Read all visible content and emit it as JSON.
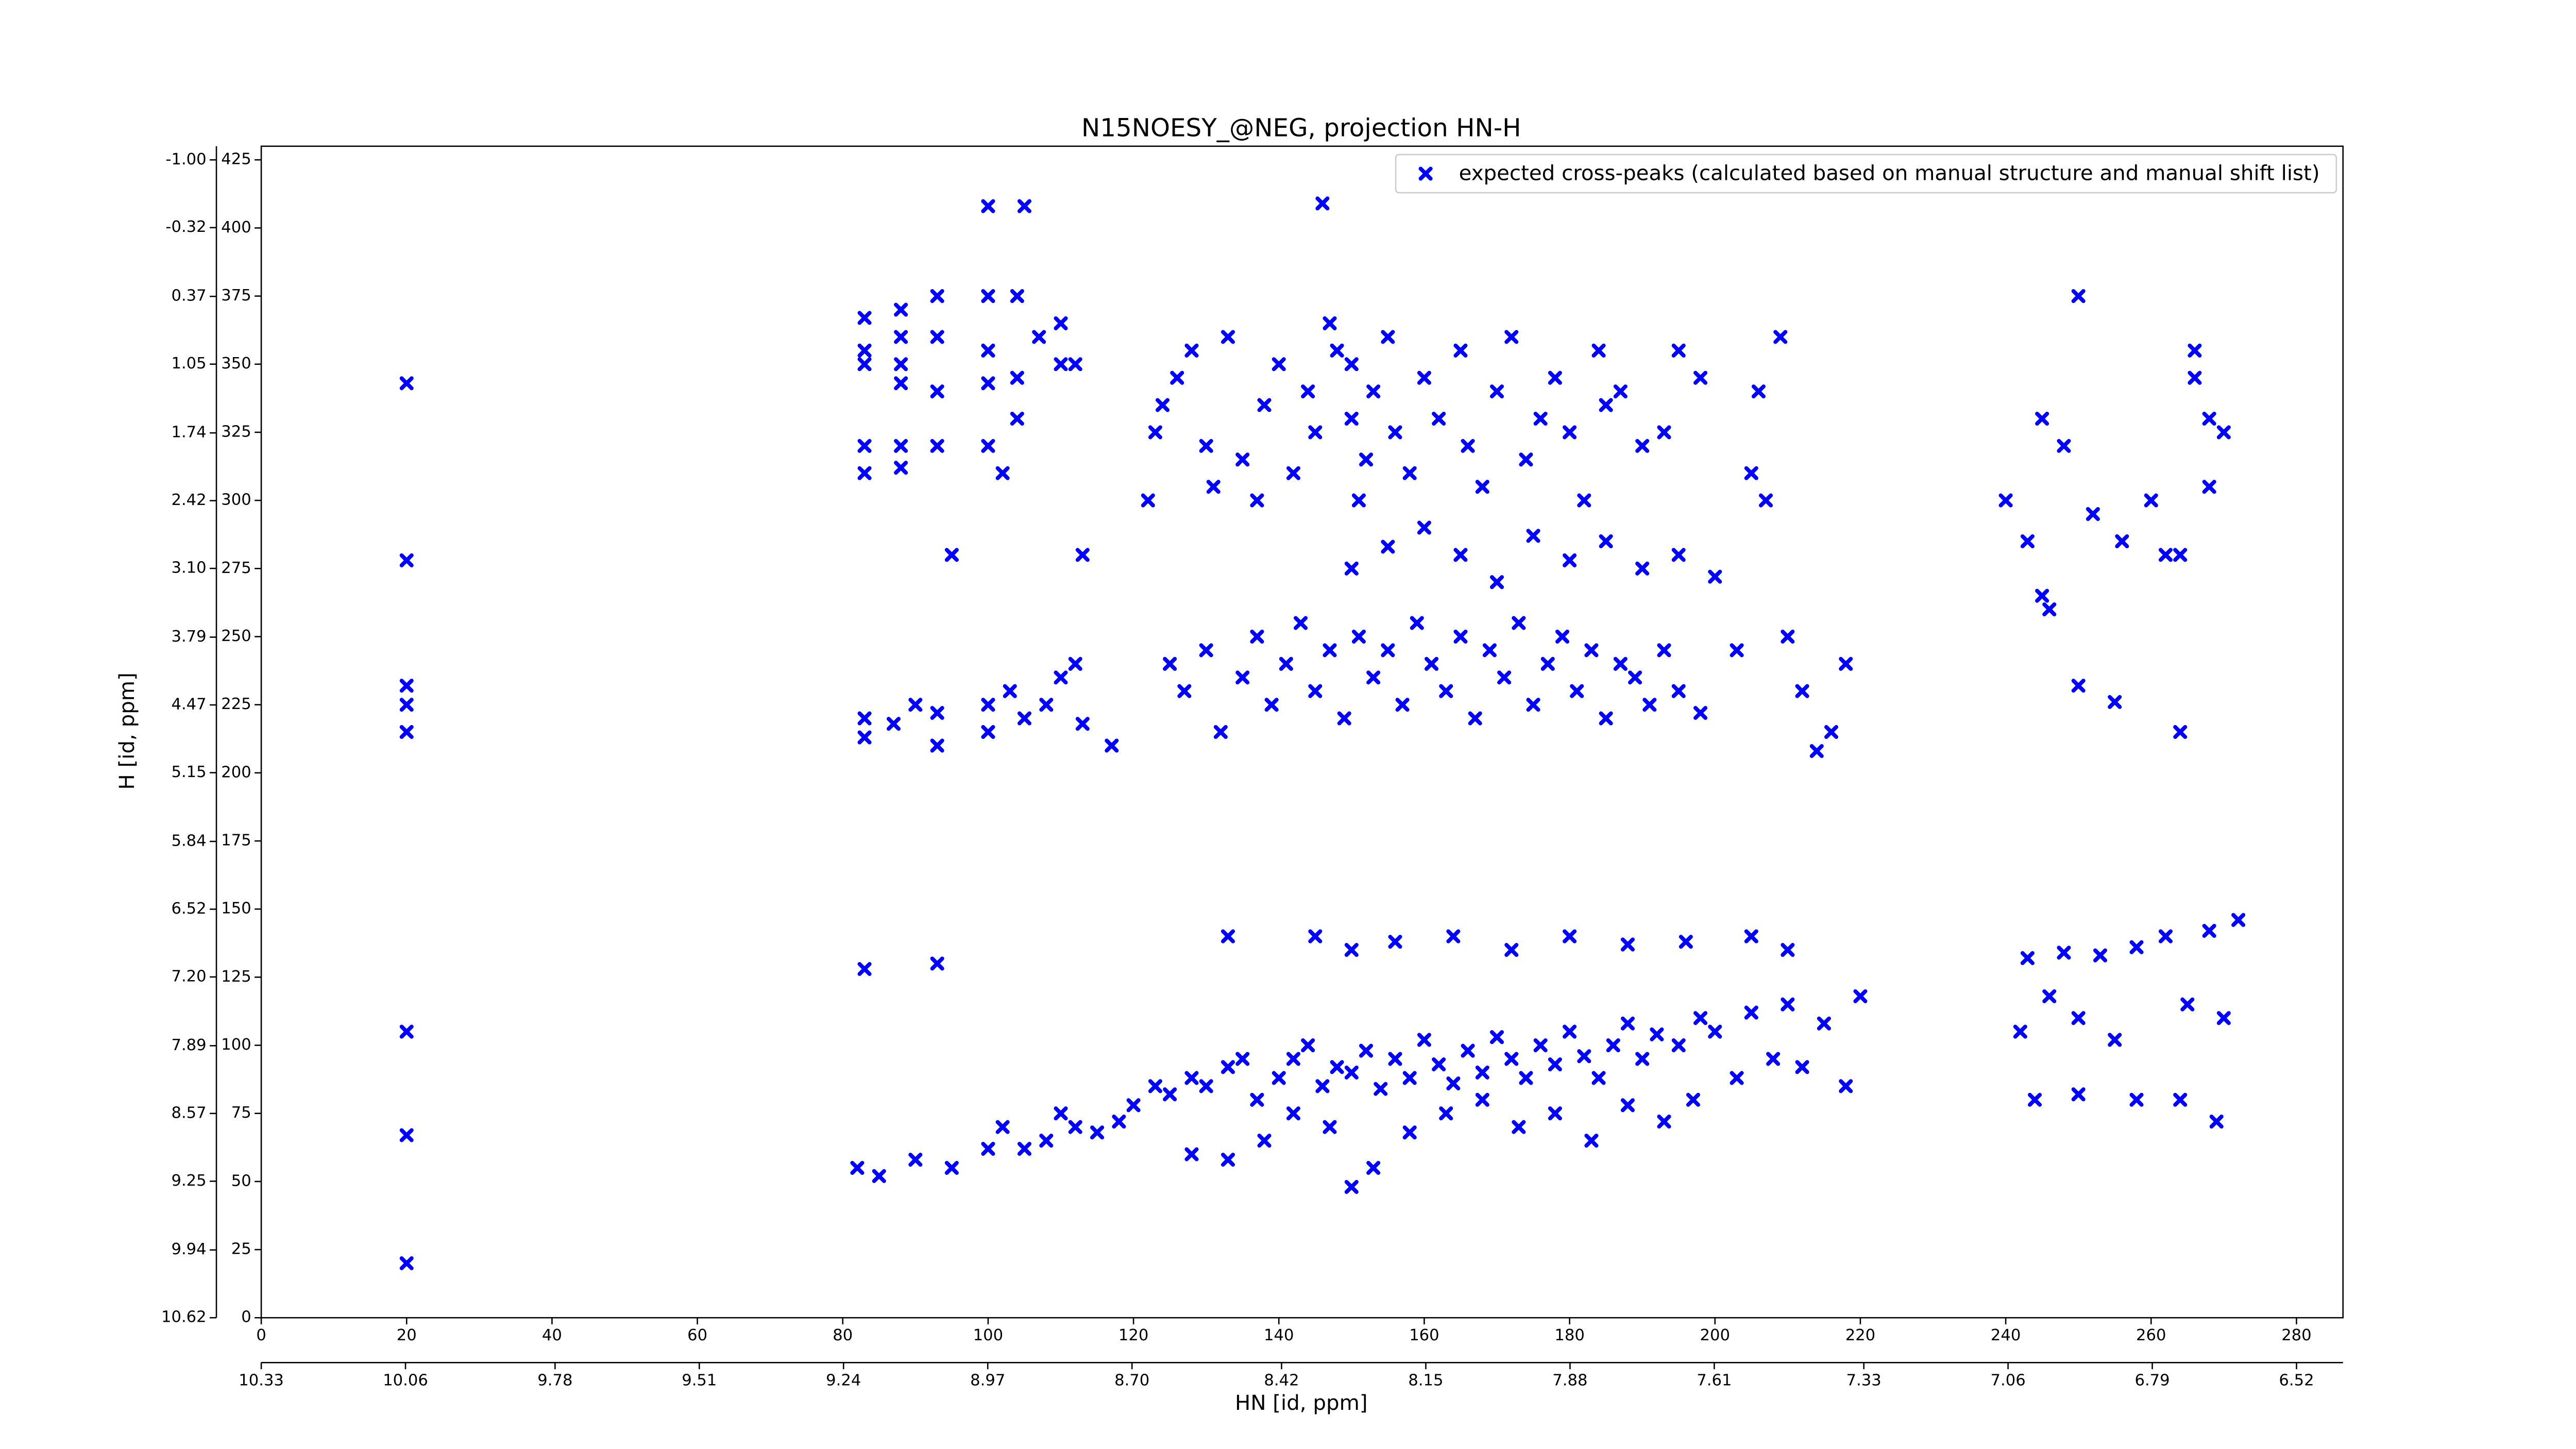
{
  "chart_data": {
    "type": "scatter",
    "title": "N15NOESY_@NEG, projection HN-H",
    "xlabel": "HN [id, ppm]",
    "ylabel": "H [id, ppm]",
    "xlim": [
      0,
      286.4
    ],
    "ylim": [
      0,
      430
    ],
    "xticks": [
      0,
      20,
      40,
      60,
      80,
      100,
      120,
      140,
      160,
      180,
      200,
      220,
      240,
      260,
      280
    ],
    "yticks": [
      0,
      25,
      50,
      75,
      100,
      125,
      150,
      175,
      200,
      225,
      250,
      275,
      300,
      325,
      350,
      375,
      400,
      425
    ],
    "x2lim": [
      10.33,
      6.433
    ],
    "x2ticks": [
      10.33,
      10.06,
      9.78,
      9.51,
      9.24,
      8.97,
      {
        "value": 8.7,
        "label": "8.70"
      },
      8.42,
      8.15,
      7.88,
      7.61,
      7.33,
      7.06,
      6.79,
      6.52
    ],
    "y2lim": [
      10.62,
      -1.137
    ],
    "y2ticks": [
      {
        "value": -1,
        "label": "-1.00"
      },
      -0.32,
      0.37,
      1.05,
      1.74,
      2.42,
      {
        "value": 3.1,
        "label": "3.10"
      },
      3.79,
      4.47,
      5.15,
      5.84,
      6.52,
      {
        "value": 7.2,
        "label": "7.20"
      },
      7.89,
      8.57,
      9.25,
      9.94,
      10.62
    ],
    "legend": "upper right",
    "grid": false,
    "series": [
      {
        "name": "expected cross-peaks (calculated based on manual structure and manual shift list)",
        "color": "#0000ff",
        "x": [
          20,
          20,
          20,
          20,
          20,
          20,
          20,
          20,
          100,
          105,
          146,
          83,
          83,
          83,
          83,
          83,
          88,
          88,
          88,
          88,
          88,
          88,
          93,
          93,
          93,
          93,
          95,
          100,
          100,
          100,
          100,
          102,
          104,
          104,
          104,
          107,
          110,
          110,
          112,
          113,
          83,
          83,
          87,
          90,
          93,
          93,
          100,
          100,
          103,
          105,
          108,
          110,
          112,
          113,
          117,
          122,
          123,
          124,
          126,
          128,
          130,
          131,
          133,
          135,
          137,
          138,
          140,
          142,
          144,
          145,
          147,
          148,
          150,
          150,
          151,
          152,
          153,
          155,
          156,
          158,
          160,
          162,
          165,
          166,
          168,
          170,
          172,
          174,
          176,
          178,
          180,
          182,
          184,
          185,
          187,
          190,
          193,
          195,
          198,
          206,
          209,
          205,
          207,
          125,
          127,
          130,
          132,
          135,
          137,
          139,
          141,
          143,
          145,
          147,
          149,
          151,
          153,
          155,
          157,
          159,
          161,
          163,
          165,
          167,
          169,
          171,
          173,
          175,
          177,
          179,
          181,
          183,
          185,
          187,
          189,
          191,
          193,
          195,
          198,
          203,
          210,
          212,
          214,
          216,
          218,
          150,
          155,
          160,
          165,
          170,
          175,
          180,
          185,
          190,
          195,
          200,
          82,
          85,
          90,
          95,
          100,
          102,
          105,
          108,
          110,
          112,
          115,
          118,
          120,
          123,
          125,
          128,
          130,
          133,
          135,
          137,
          140,
          142,
          144,
          146,
          148,
          150,
          152,
          154,
          156,
          158,
          160,
          162,
          164,
          166,
          168,
          170,
          172,
          174,
          176,
          178,
          180,
          182,
          184,
          186,
          188,
          190,
          192,
          195,
          198,
          200,
          205,
          210,
          215,
          220,
          208,
          212,
          218,
          203,
          197,
          193,
          188,
          183,
          178,
          173,
          168,
          163,
          158,
          153,
          150,
          147,
          142,
          138,
          133,
          128,
          83,
          93,
          133,
          145,
          150,
          156,
          164,
          172,
          180,
          188,
          196,
          205,
          210,
          243,
          248,
          253,
          258,
          262,
          268,
          272,
          240,
          243,
          245,
          248,
          252,
          256,
          260,
          264,
          266,
          266,
          268,
          270,
          268,
          262,
          250,
          245,
          246,
          250,
          255,
          264,
          246,
          250,
          255,
          265,
          270,
          244,
          250,
          258,
          264,
          269,
          242
        ],
        "values": [
          343,
          278,
          232,
          225,
          215,
          105,
          67,
          20,
          408,
          408,
          409,
          367,
          355,
          350,
          320,
          310,
          370,
          360,
          350,
          343,
          320,
          312,
          375,
          360,
          340,
          320,
          280,
          375,
          355,
          343,
          320,
          310,
          375,
          345,
          330,
          360,
          350,
          365,
          350,
          280,
          220,
          213,
          218,
          225,
          222,
          210,
          225,
          215,
          230,
          220,
          225,
          235,
          240,
          218,
          210,
          300,
          325,
          335,
          345,
          355,
          320,
          305,
          360,
          315,
          300,
          335,
          350,
          310,
          340,
          325,
          365,
          355,
          350,
          330,
          300,
          315,
          340,
          360,
          325,
          310,
          345,
          330,
          355,
          320,
          305,
          340,
          360,
          315,
          330,
          345,
          325,
          300,
          355,
          335,
          340,
          320,
          325,
          355,
          345,
          340,
          360,
          310,
          300,
          240,
          230,
          245,
          215,
          235,
          250,
          225,
          240,
          255,
          230,
          245,
          220,
          250,
          235,
          245,
          225,
          255,
          240,
          230,
          250,
          220,
          245,
          235,
          255,
          225,
          240,
          250,
          230,
          245,
          220,
          240,
          235,
          225,
          245,
          230,
          222,
          245,
          250,
          230,
          208,
          215,
          240,
          275,
          283,
          290,
          280,
          270,
          287,
          278,
          285,
          275,
          280,
          272,
          55,
          52,
          58,
          55,
          62,
          70,
          62,
          65,
          75,
          70,
          68,
          72,
          78,
          85,
          82,
          88,
          85,
          92,
          95,
          80,
          88,
          95,
          100,
          85,
          92,
          90,
          98,
          84,
          95,
          88,
          102,
          93,
          86,
          98,
          90,
          103,
          95,
          88,
          100,
          93,
          105,
          96,
          88,
          100,
          108,
          95,
          104,
          100,
          110,
          105,
          112,
          115,
          108,
          118,
          95,
          92,
          85,
          88,
          80,
          72,
          78,
          65,
          75,
          70,
          80,
          75,
          68,
          55,
          48,
          70,
          75,
          65,
          58,
          60,
          128,
          130,
          140,
          140,
          135,
          138,
          140,
          135,
          140,
          137,
          138,
          140,
          135,
          132,
          134,
          133,
          136,
          140,
          142,
          146,
          300,
          285,
          265,
          320,
          295,
          285,
          300,
          280,
          355,
          345,
          330,
          325,
          305,
          280,
          375,
          330,
          260,
          232,
          226,
          215,
          118,
          110,
          102,
          115,
          110,
          80,
          82,
          80,
          80,
          72,
          105
        ]
      }
    ]
  }
}
